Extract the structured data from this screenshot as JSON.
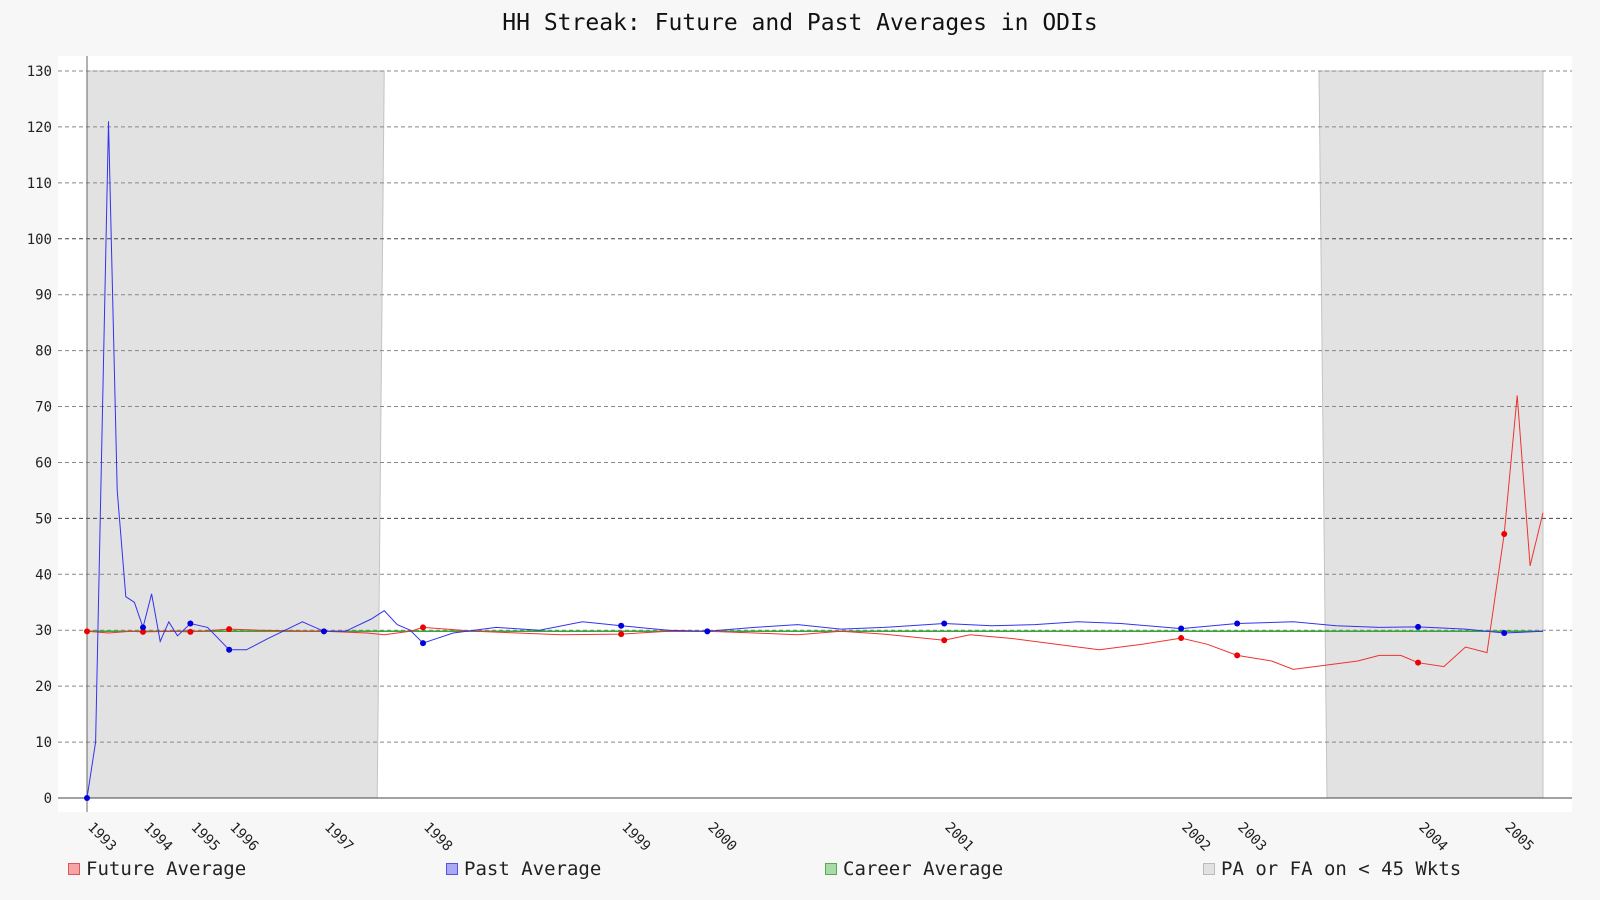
{
  "chart_data": {
    "type": "line",
    "title": "HH Streak: Future and Past Averages in ODIs",
    "xlabel": "",
    "ylabel": "",
    "ylim": [
      0,
      130
    ],
    "y_ticks": [
      0,
      10,
      20,
      30,
      40,
      50,
      60,
      70,
      80,
      90,
      100,
      110,
      120,
      130
    ],
    "x_tick_labels": [
      "1993",
      "1994",
      "1995",
      "1996",
      "1997",
      "1998",
      "1999",
      "2000",
      "2001",
      "2002",
      "2003",
      "2004",
      "2005"
    ],
    "x_tick_positions": [
      0,
      13,
      24,
      33,
      55,
      78,
      124,
      144,
      199,
      254,
      267,
      309,
      329
    ],
    "x_range": [
      0,
      338
    ],
    "grid": true,
    "legend_position": "bottom",
    "shaded_regions": [
      [
        0,
        69
      ],
      [
        286,
        338
      ]
    ],
    "series": [
      {
        "name": "Future Average",
        "color": "#ee3333",
        "x": [
          0,
          5,
          10,
          13,
          20,
          24,
          33,
          40,
          55,
          65,
          69,
          75,
          78,
          90,
          100,
          110,
          124,
          135,
          144,
          155,
          165,
          175,
          185,
          199,
          205,
          215,
          225,
          235,
          245,
          254,
          260,
          267,
          275,
          280,
          285,
          295,
          300,
          305,
          309,
          315,
          320,
          325,
          329,
          332,
          335,
          338
        ],
        "y": [
          29.8,
          29.5,
          29.8,
          29.7,
          29.8,
          29.7,
          30.2,
          30.0,
          29.8,
          29.5,
          29.2,
          29.8,
          30.5,
          29.8,
          29.5,
          29.2,
          29.3,
          29.8,
          29.8,
          29.5,
          29.2,
          29.8,
          29.3,
          28.2,
          29.2,
          28.5,
          27.5,
          26.5,
          27.5,
          28.6,
          27.5,
          25.5,
          24.5,
          23.0,
          23.5,
          24.5,
          25.5,
          25.5,
          24.2,
          23.5,
          27.0,
          26.0,
          47.2,
          72.0,
          41.5,
          51.0
        ]
      },
      {
        "name": "Past Average",
        "color": "#3333ee",
        "x": [
          0,
          2,
          5,
          7,
          9,
          11,
          13,
          15,
          17,
          19,
          21,
          24,
          28,
          33,
          37,
          42,
          50,
          55,
          60,
          66,
          69,
          72,
          75,
          78,
          85,
          95,
          105,
          115,
          124,
          135,
          144,
          155,
          165,
          175,
          185,
          199,
          210,
          220,
          230,
          240,
          254,
          267,
          280,
          290,
          300,
          309,
          320,
          329,
          338
        ],
        "y": [
          0,
          10,
          121,
          55,
          36,
          35,
          30.5,
          36.5,
          28,
          31.5,
          29,
          31.2,
          30.5,
          26.5,
          26.5,
          28.5,
          31.5,
          29.8,
          29.8,
          32,
          33.5,
          31,
          30,
          27.7,
          29.5,
          30.5,
          30,
          31.5,
          30.8,
          30,
          29.8,
          30.5,
          31,
          30.2,
          30.5,
          31.2,
          30.8,
          31,
          31.5,
          31.2,
          30.3,
          31.2,
          31.5,
          30.8,
          30.5,
          30.6,
          30.2,
          29.5,
          29.8
        ]
      },
      {
        "name": "Career Average",
        "color": "#33aa33",
        "x": [
          0,
          338
        ],
        "y": [
          29.8,
          29.8
        ]
      },
      {
        "name": "PA or FA on < 45 Wkts",
        "color": "#bbbbbb",
        "x": [],
        "y": []
      }
    ],
    "markers": {
      "future_x": [
        0,
        13,
        24,
        33,
        78,
        124,
        199,
        254,
        267,
        309,
        329
      ],
      "past_x": [
        0,
        13,
        24,
        33,
        55,
        78,
        124,
        144,
        199,
        254,
        267,
        309,
        329
      ]
    }
  }
}
